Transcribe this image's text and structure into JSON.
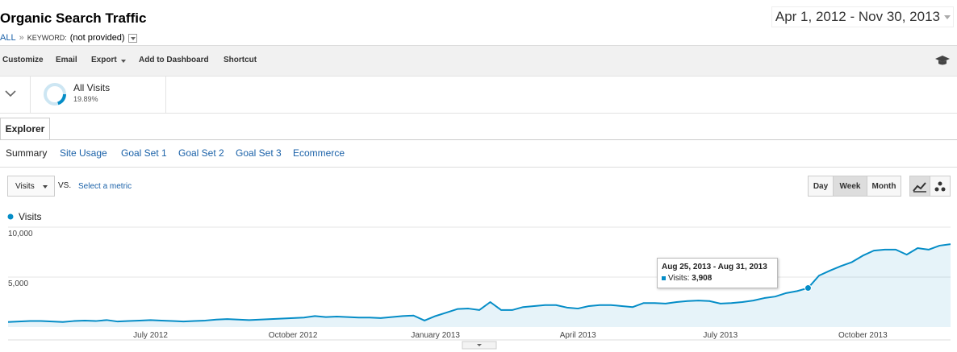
{
  "header": {
    "title": "Organic Search Traffic",
    "breadcrumb": [
      "ALL",
      "»",
      "KEYWORD:",
      "(not provided)"
    ],
    "date_range": "Apr 1, 2012 - Nov 30, 2013"
  },
  "toolbar": [
    "Customize",
    "Email",
    "Export",
    "Add to Dashboard",
    "Shortcut"
  ],
  "segment": {
    "name": "All Visits",
    "share": {
      "value": 19.89,
      "label": "19.89%"
    }
  },
  "tabs": [
    "Explorer"
  ],
  "subtabs": [
    "Summary",
    "Site Usage",
    "Goal Set 1",
    "Goal Set 2",
    "Goal Set 3",
    "Ecommerce"
  ],
  "controls": {
    "metric": "Visits",
    "vs": "VS.",
    "select": "Select a metric",
    "granularity": [
      "Day",
      "Week",
      "Month"
    ]
  },
  "chart_data": {
    "type": "line",
    "categories": [
      null,
      null,
      null,
      null,
      null,
      null,
      null,
      null,
      null,
      null,
      null,
      null,
      null,
      "July 2012",
      null,
      null,
      null,
      null,
      null,
      null,
      null,
      null,
      null,
      null,
      null,
      null,
      "October 2012",
      null,
      null,
      null,
      null,
      null,
      null,
      null,
      null,
      null,
      null,
      null,
      null,
      "January 2013",
      null,
      null,
      null,
      null,
      null,
      null,
      null,
      null,
      null,
      null,
      null,
      null,
      "April 2013",
      null,
      null,
      null,
      null,
      null,
      null,
      null,
      null,
      null,
      null,
      null,
      null,
      "July 2013",
      null,
      null,
      null,
      null,
      null,
      null,
      null,
      null,
      null,
      null,
      null,
      null,
      "October 2013",
      null,
      null,
      null,
      null,
      null,
      null,
      null,
      null
    ],
    "series": [
      {
        "name": "Visits",
        "color": "#058dc7",
        "values": [
          500,
          550,
          600,
          600,
          550,
          500,
          600,
          650,
          600,
          700,
          550,
          600,
          650,
          700,
          650,
          600,
          550,
          600,
          650,
          750,
          800,
          750,
          700,
          750,
          800,
          850,
          900,
          950,
          1100,
          1000,
          1050,
          1000,
          950,
          950,
          900,
          1000,
          1100,
          1150,
          650,
          1100,
          1450,
          1800,
          1850,
          1700,
          2500,
          1700,
          1700,
          2000,
          2100,
          2200,
          2200,
          1950,
          1850,
          2100,
          2200,
          2200,
          2100,
          2000,
          2400,
          2400,
          2350,
          2500,
          2600,
          2650,
          2600,
          2350,
          2400,
          2500,
          2650,
          2900,
          3050,
          3400,
          3600,
          3908,
          5150,
          5650,
          6100,
          6500,
          7150,
          7650,
          7750,
          7750,
          7250,
          7900,
          7750,
          8150,
          8300
        ]
      }
    ],
    "ylim": [
      0,
      10000
    ],
    "yticks": [
      {
        "value": 5000,
        "label": "5,000"
      },
      {
        "value": 10000,
        "label": "10,000"
      }
    ],
    "grid": true,
    "tooltip": {
      "title": "Aug 25, 2013 - Aug 31, 2013",
      "metric": "Visits:",
      "value": 3908,
      "value_label": "3,908"
    }
  }
}
